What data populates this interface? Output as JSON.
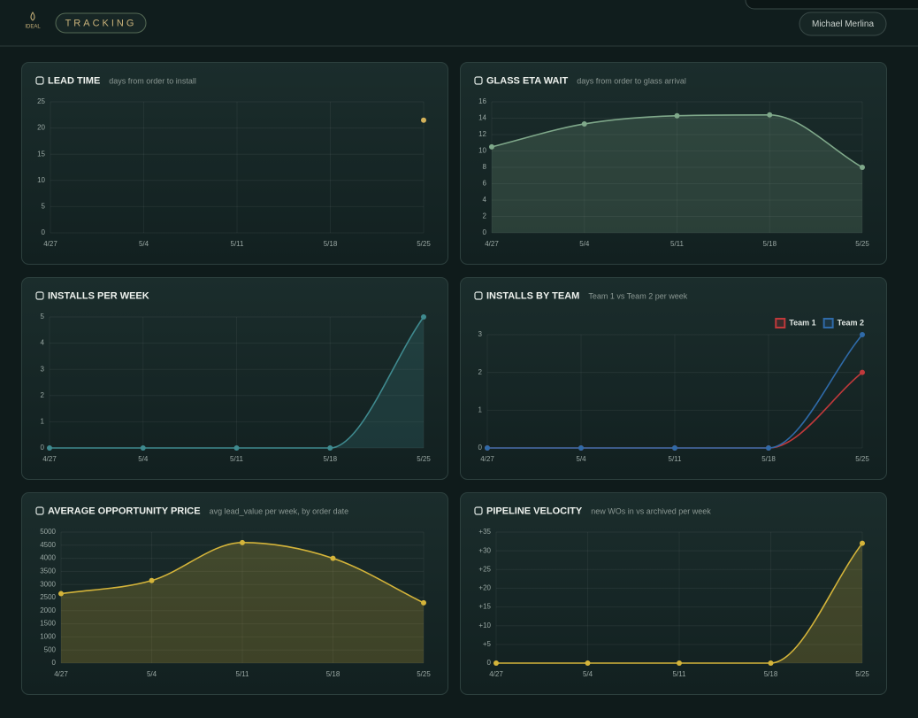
{
  "header": {
    "brand": "IDEAL",
    "tab": "TRACKING",
    "user": "Michael Merlina"
  },
  "chart_data": [
    {
      "type": "line",
      "title": "LEAD TIME",
      "subtitle": "days from order to install",
      "categories": [
        "4/27",
        "5/4",
        "5/11",
        "5/18",
        "5/25"
      ],
      "series": [
        {
          "color": "#d4b25a",
          "values": [
            null,
            null,
            null,
            null,
            21.5
          ]
        }
      ],
      "ylim": [
        0,
        25
      ],
      "yticks": [
        0,
        5,
        10,
        15,
        20,
        25
      ],
      "grid": true,
      "fill": false
    },
    {
      "type": "line",
      "title": "GLASS ETA WAIT",
      "subtitle": "days from order to glass arrival",
      "categories": [
        "4/27",
        "5/4",
        "5/11",
        "5/18",
        "5/25"
      ],
      "series": [
        {
          "color": "#7fa88a",
          "values": [
            10.5,
            13.3,
            14.3,
            14.4,
            8
          ]
        }
      ],
      "ylim": [
        0,
        16
      ],
      "yticks": [
        0,
        2,
        4,
        6,
        8,
        10,
        12,
        14,
        16
      ],
      "grid": true,
      "fill": true
    },
    {
      "type": "line",
      "title": "INSTALLS PER WEEK",
      "categories": [
        "4/27",
        "5/4",
        "5/11",
        "5/18",
        "5/25"
      ],
      "series": [
        {
          "color": "#3f8a8f",
          "values": [
            0,
            0,
            0,
            0,
            5
          ]
        }
      ],
      "ylim": [
        0,
        5
      ],
      "yticks": [
        0,
        1,
        2,
        3,
        4,
        5
      ],
      "grid": true,
      "fill": true
    },
    {
      "type": "line",
      "title": "INSTALLS BY TEAM",
      "subtitle": "Team 1 vs Team 2 per week",
      "categories": [
        "4/27",
        "5/4",
        "5/11",
        "5/18",
        "5/25"
      ],
      "series": [
        {
          "name": "Team 1",
          "color": "#c0393b",
          "values": [
            0,
            0,
            0,
            0,
            2
          ]
        },
        {
          "name": "Team 2",
          "color": "#2f6aa8",
          "values": [
            0,
            0,
            0,
            0,
            3
          ]
        }
      ],
      "ylim": [
        0,
        3
      ],
      "yticks": [
        0,
        1,
        2,
        3
      ],
      "grid": true,
      "fill": false,
      "legend": "top-right"
    },
    {
      "type": "line",
      "title": "AVERAGE OPPORTUNITY PRICE",
      "subtitle": "avg lead_value per week, by order date",
      "categories": [
        "4/27",
        "5/4",
        "5/11",
        "5/18",
        "5/25"
      ],
      "series": [
        {
          "color": "#d4b43a",
          "values": [
            2650,
            3150,
            4600,
            4000,
            2300
          ]
        }
      ],
      "ylim": [
        0,
        5000
      ],
      "yticks": [
        0,
        500,
        1000,
        1500,
        2000,
        2500,
        3000,
        3500,
        4000,
        4500,
        5000
      ],
      "grid": true,
      "fill": true
    },
    {
      "type": "line",
      "title": "PIPELINE VELOCITY",
      "subtitle": "new WOs in vs archived per week",
      "categories": [
        "4/27",
        "5/4",
        "5/11",
        "5/18",
        "5/25"
      ],
      "series": [
        {
          "color": "#d4b43a",
          "values": [
            0,
            0,
            0,
            0,
            32
          ]
        }
      ],
      "ylim": [
        0,
        35
      ],
      "yticks": [
        0,
        {
          "value": 5,
          "label": "+5"
        },
        {
          "value": 10,
          "label": "+10"
        },
        {
          "value": 15,
          "label": "+15"
        },
        {
          "value": 20,
          "label": "+20"
        },
        {
          "value": 25,
          "label": "+25"
        },
        {
          "value": 30,
          "label": "+30"
        },
        {
          "value": 35,
          "label": "+35"
        }
      ],
      "grid": true,
      "fill": true
    }
  ]
}
